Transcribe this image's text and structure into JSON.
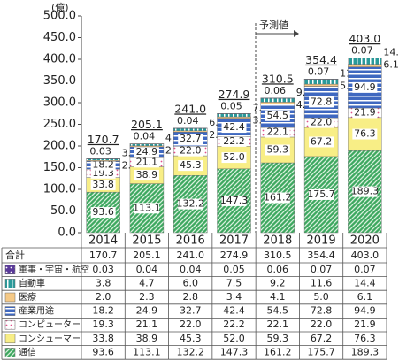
{
  "chart_data": {
    "type": "stacked-bar",
    "y_unit": "(億)",
    "annotation": "予測値",
    "categories": [
      "2014",
      "2015",
      "2016",
      "2017",
      "2018",
      "2019",
      "2020"
    ],
    "ylim": [
      0,
      500
    ],
    "yticks": [
      {
        "value": 0,
        "label": "0.0"
      },
      {
        "value": 50,
        "label": "50.0"
      },
      {
        "value": 100,
        "label": "100.0"
      },
      {
        "value": 150,
        "label": "150.0"
      },
      {
        "value": 200,
        "label": "200.0"
      },
      {
        "value": 250,
        "label": "250.0"
      },
      {
        "value": 300,
        "label": "300.0"
      },
      {
        "value": 350,
        "label": "350.0"
      },
      {
        "value": 400,
        "label": "400.0"
      },
      {
        "value": 450,
        "label": "450.0"
      },
      {
        "value": 500,
        "label": "500.0"
      }
    ],
    "totals": {
      "name": "合計",
      "values": [
        170.7,
        205.1,
        241.0,
        274.9,
        310.5,
        354.4,
        403.0
      ],
      "value_labels": [
        "170.7",
        "205.1",
        "241.0",
        "274.9",
        "310.5",
        "354.4",
        "403.0"
      ]
    },
    "series": [
      {
        "name": "通信",
        "color": "#3ea860",
        "pattern": "diagonal",
        "values": [
          93.6,
          113.1,
          132.2,
          147.3,
          161.2,
          175.7,
          189.3
        ],
        "value_labels": [
          "93.6",
          "113.1",
          "132.2",
          "147.3",
          "161.2",
          "175.7",
          "189.3"
        ]
      },
      {
        "name": "コンシューマー",
        "color": "#f8ee86",
        "pattern": "solid",
        "values": [
          33.8,
          38.9,
          45.3,
          52.0,
          59.3,
          67.2,
          76.3
        ],
        "value_labels": [
          "33.8",
          "38.9",
          "45.3",
          "52.0",
          "59.3",
          "67.2",
          "76.3"
        ]
      },
      {
        "name": "コンピューター",
        "color": "#e0508a",
        "pattern": "dots",
        "values": [
          19.3,
          21.1,
          22.0,
          22.2,
          22.1,
          22.0,
          21.9
        ],
        "value_labels": [
          "19.3",
          "21.1",
          "22.0",
          "22.2",
          "22.1",
          "22.0",
          "21.9"
        ]
      },
      {
        "name": "産業用途",
        "color": "#3f68c0",
        "pattern": "hstripes",
        "values": [
          18.2,
          24.9,
          32.7,
          42.4,
          54.5,
          72.8,
          94.9
        ],
        "value_labels": [
          "18.2",
          "24.9",
          "32.7",
          "42.4",
          "54.5",
          "72.8",
          "94.9"
        ]
      },
      {
        "name": "医療",
        "color": "#f5c986",
        "pattern": "solid",
        "values": [
          2.0,
          2.3,
          2.8,
          3.4,
          4.1,
          5.0,
          6.1
        ],
        "value_labels": [
          "2.0",
          "2.3",
          "2.8",
          "3.4",
          "4.1",
          "5.0",
          "6.1"
        ]
      },
      {
        "name": "自動車",
        "color": "#2a9a9a",
        "pattern": "vstripes",
        "values": [
          3.8,
          4.7,
          6.0,
          7.5,
          9.2,
          11.6,
          14.4
        ],
        "value_labels": [
          "3.8",
          "4.7",
          "6.0",
          "7.5",
          "9.2",
          "11.6",
          "14.4"
        ]
      },
      {
        "name": "軍事・宇宙・航空",
        "color": "#5a3a9a",
        "pattern": "darkdots",
        "values": [
          0.03,
          0.04,
          0.04,
          0.05,
          0.06,
          0.07,
          0.07
        ],
        "value_labels": [
          "0.03",
          "0.04",
          "0.04",
          "0.05",
          "0.06",
          "0.07",
          "0.07"
        ]
      }
    ]
  }
}
